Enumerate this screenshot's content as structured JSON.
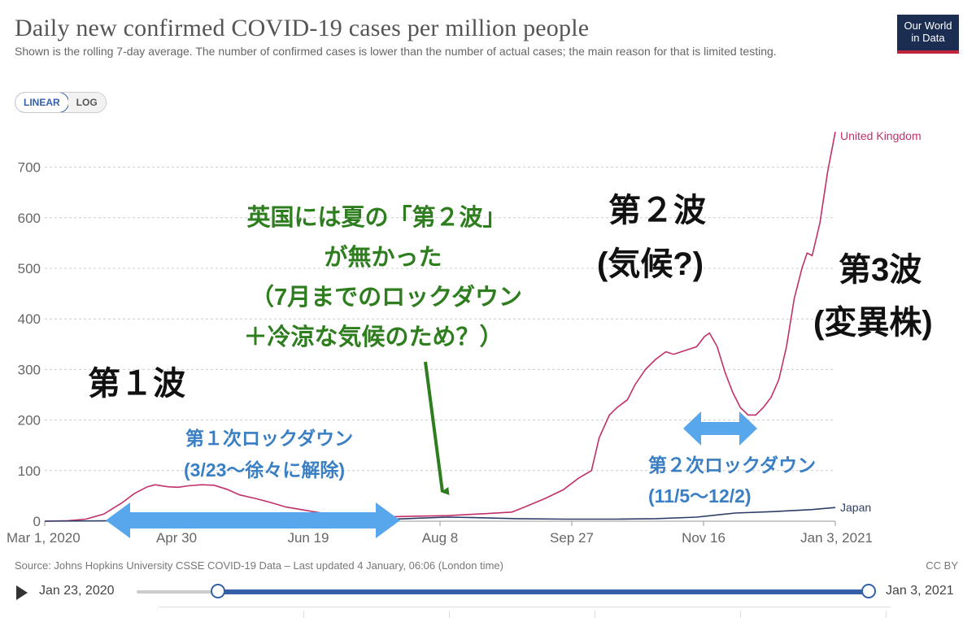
{
  "title": "Daily new confirmed COVID-19 cases per million people",
  "subtitle": "Shown is the rolling 7-day average. The number of confirmed cases is lower than the number of actual cases; the main reason for that is limited testing.",
  "logo": {
    "line1": "Our World",
    "line2": "in Data"
  },
  "scale_toggle": {
    "linear": "LINEAR",
    "log": "LOG",
    "selected": "LINEAR"
  },
  "source": "Source: Johns Hopkins University CSSE COVID-19 Data – Last updated 4 January, 06:06 (London time)",
  "license": "CC BY",
  "timeline": {
    "start": "Jan 23, 2020",
    "end": "Jan 3, 2021"
  },
  "colors": {
    "uk": "#c0306a",
    "japan": "#2d3e66",
    "annotation_green": "#2e7d1e",
    "annotation_blue": "#3a7fc4",
    "arrow_blue": "#58a6ec"
  },
  "chart_data": {
    "type": "line",
    "x_start": "2020-03-01",
    "x_end": "2021-01-03",
    "x_ticks": [
      "Mar 1, 2020",
      "Apr 30",
      "Jun 19",
      "Aug 8",
      "Sep 27",
      "Nov 16",
      "Jan 3, 2021"
    ],
    "y_ticks": [
      0,
      100,
      200,
      300,
      400,
      500,
      600,
      700
    ],
    "ylim": [
      0,
      780
    ],
    "grid": true,
    "series": [
      {
        "name": "United Kingdom",
        "points": [
          [
            "2020-03-01",
            0
          ],
          [
            "2020-03-10",
            1
          ],
          [
            "2020-03-17",
            4
          ],
          [
            "2020-03-24",
            14
          ],
          [
            "2020-03-31",
            36
          ],
          [
            "2020-04-05",
            55
          ],
          [
            "2020-04-10",
            68
          ],
          [
            "2020-04-13",
            72
          ],
          [
            "2020-04-18",
            68
          ],
          [
            "2020-04-22",
            67
          ],
          [
            "2020-04-26",
            70
          ],
          [
            "2020-05-01",
            72
          ],
          [
            "2020-05-06",
            71
          ],
          [
            "2020-05-11",
            63
          ],
          [
            "2020-05-16",
            52
          ],
          [
            "2020-05-22",
            45
          ],
          [
            "2020-05-28",
            37
          ],
          [
            "2020-06-03",
            28
          ],
          [
            "2020-06-10",
            22
          ],
          [
            "2020-06-17",
            16
          ],
          [
            "2020-06-25",
            14
          ],
          [
            "2020-07-05",
            11
          ],
          [
            "2020-07-15",
            9
          ],
          [
            "2020-07-25",
            10
          ],
          [
            "2020-08-05",
            11
          ],
          [
            "2020-08-12",
            13
          ],
          [
            "2020-08-20",
            15
          ],
          [
            "2020-08-30",
            18
          ],
          [
            "2020-09-05",
            30
          ],
          [
            "2020-09-12",
            45
          ],
          [
            "2020-09-19",
            62
          ],
          [
            "2020-09-25",
            85
          ],
          [
            "2020-09-30",
            100
          ],
          [
            "2020-10-03",
            165
          ],
          [
            "2020-10-07",
            210
          ],
          [
            "2020-10-10",
            225
          ],
          [
            "2020-10-14",
            240
          ],
          [
            "2020-10-17",
            270
          ],
          [
            "2020-10-21",
            300
          ],
          [
            "2020-10-25",
            320
          ],
          [
            "2020-10-29",
            335
          ],
          [
            "2020-11-01",
            330
          ],
          [
            "2020-11-04",
            335
          ],
          [
            "2020-11-07",
            340
          ],
          [
            "2020-11-10",
            345
          ],
          [
            "2020-11-13",
            365
          ],
          [
            "2020-11-15",
            372
          ],
          [
            "2020-11-18",
            345
          ],
          [
            "2020-11-21",
            295
          ],
          [
            "2020-11-24",
            255
          ],
          [
            "2020-11-27",
            225
          ],
          [
            "2020-11-30",
            210
          ],
          [
            "2020-12-03",
            210
          ],
          [
            "2020-12-06",
            225
          ],
          [
            "2020-12-09",
            245
          ],
          [
            "2020-12-12",
            280
          ],
          [
            "2020-12-15",
            345
          ],
          [
            "2020-12-18",
            440
          ],
          [
            "2020-12-21",
            500
          ],
          [
            "2020-12-23",
            530
          ],
          [
            "2020-12-25",
            525
          ],
          [
            "2020-12-28",
            590
          ],
          [
            "2020-12-31",
            690
          ],
          [
            "2021-01-03",
            770
          ]
        ]
      },
      {
        "name": "Japan",
        "points": [
          [
            "2020-03-01",
            0
          ],
          [
            "2020-04-01",
            1
          ],
          [
            "2020-04-15",
            3
          ],
          [
            "2020-05-01",
            2
          ],
          [
            "2020-06-01",
            1
          ],
          [
            "2020-07-01",
            2
          ],
          [
            "2020-07-20",
            5
          ],
          [
            "2020-08-05",
            8
          ],
          [
            "2020-08-15",
            7
          ],
          [
            "2020-09-01",
            5
          ],
          [
            "2020-09-20",
            4
          ],
          [
            "2020-10-10",
            4
          ],
          [
            "2020-10-25",
            5
          ],
          [
            "2020-11-10",
            8
          ],
          [
            "2020-11-25",
            16
          ],
          [
            "2020-12-10",
            19
          ],
          [
            "2020-12-25",
            23
          ],
          [
            "2021-01-03",
            27
          ]
        ]
      }
    ]
  },
  "annotations": {
    "wave1": "第１波",
    "wave2_line1": "第２波",
    "wave2_line2": "(気候?)",
    "wave3_line1": "第3波",
    "wave3_line2": "(変異株)",
    "summer_line1": "英国には夏の「第２波」",
    "summer_line2": "が無かった",
    "summer_line3": "（7月までのロックダウン",
    "summer_line4": "＋冷涼な気候のため？）",
    "lockdown1_line1": "第１次ロックダウン",
    "lockdown1_line2": "(3/23〜徐々に解除)",
    "lockdown2_line1": "第２次ロックダウン",
    "lockdown2_line2": "(11/5〜12/2)"
  }
}
